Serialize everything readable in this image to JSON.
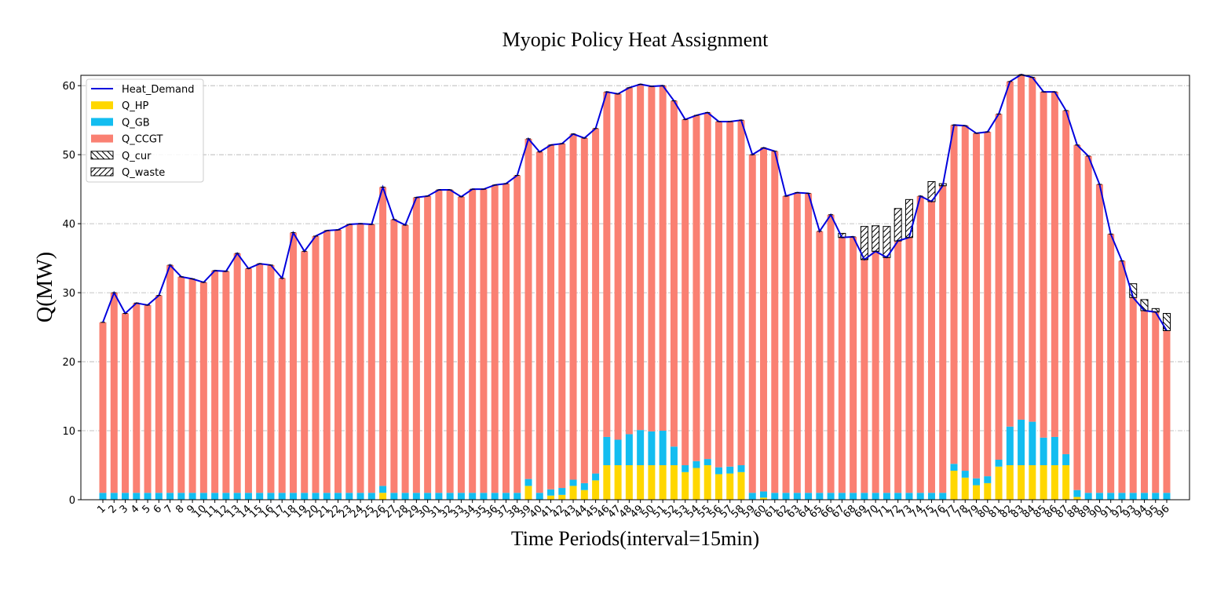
{
  "chart_data": {
    "type": "stacked-bar-line",
    "title": "Myopic Policy Heat Assignment",
    "xlabel": "Time Periods(interval=15min)",
    "ylabel": "Q(MW)",
    "categories": [
      "1",
      "2",
      "3",
      "4",
      "5",
      "6",
      "7",
      "8",
      "9",
      "10",
      "11",
      "12",
      "13",
      "14",
      "15",
      "16",
      "17",
      "18",
      "19",
      "20",
      "21",
      "22",
      "23",
      "24",
      "25",
      "26",
      "27",
      "28",
      "29",
      "30",
      "31",
      "32",
      "33",
      "34",
      "35",
      "36",
      "37",
      "38",
      "39",
      "40",
      "41",
      "42",
      "43",
      "44",
      "45",
      "46",
      "47",
      "48",
      "49",
      "50",
      "51",
      "52",
      "53",
      "54",
      "55",
      "56",
      "57",
      "58",
      "59",
      "60",
      "61",
      "62",
      "63",
      "64",
      "65",
      "66",
      "67",
      "68",
      "69",
      "70",
      "71",
      "72",
      "73",
      "74",
      "75",
      "76",
      "77",
      "78",
      "79",
      "80",
      "81",
      "82",
      "83",
      "84",
      "85",
      "86",
      "87",
      "88",
      "89",
      "90",
      "91",
      "92",
      "93",
      "94",
      "95",
      "96"
    ],
    "line": {
      "name": "Heat_Demand",
      "color": "#0000dd",
      "values": [
        25.7,
        30.0,
        27.0,
        28.5,
        28.2,
        29.6,
        34.0,
        32.3,
        32.0,
        31.5,
        33.2,
        33.1,
        35.7,
        33.5,
        34.2,
        34.0,
        32.1,
        38.7,
        36.0,
        38.2,
        39.0,
        39.1,
        39.9,
        40.0,
        39.9,
        45.3,
        40.6,
        39.8,
        43.8,
        44.0,
        44.9,
        44.9,
        43.9,
        45.0,
        45.0,
        45.6,
        45.8,
        47.0,
        52.3,
        50.4,
        51.4,
        51.6,
        53.0,
        52.4,
        53.8,
        59.1,
        58.8,
        59.7,
        60.2,
        59.9,
        60.0,
        57.8,
        55.1,
        55.7,
        56.1,
        54.8,
        54.8,
        55.0,
        50.0,
        51.0,
        50.5,
        44.0,
        44.5,
        44.4,
        38.9,
        41.3,
        38.0,
        38.1,
        34.8,
        36.0,
        35.1,
        37.5,
        38.0,
        44.0,
        43.2,
        45.5,
        54.3,
        54.2,
        53.1,
        53.3,
        55.9,
        60.6,
        61.6,
        61.2,
        59.1,
        59.1,
        56.4,
        51.4,
        49.8,
        45.7,
        38.5,
        34.6,
        29.3,
        27.4,
        27.2,
        24.5
      ]
    },
    "series": [
      {
        "name": "Q_HP",
        "color": "#ffd700",
        "values": [
          0,
          0,
          0,
          0,
          0,
          0,
          0,
          0,
          0,
          0,
          0,
          0,
          0,
          0,
          0,
          0,
          0,
          0,
          0,
          0,
          0,
          0,
          0,
          0,
          0,
          1.0,
          0,
          0,
          0,
          0,
          0,
          0,
          0,
          0,
          0,
          0,
          0,
          0,
          2.0,
          0,
          0.6,
          0.7,
          2.0,
          1.4,
          2.8,
          5,
          5,
          5,
          5,
          5,
          5,
          5,
          4.0,
          4.6,
          5.0,
          3.7,
          3.8,
          4.0,
          0,
          0.3,
          0,
          0,
          0,
          0,
          0,
          0,
          0,
          0,
          0,
          0,
          0,
          0,
          0,
          0,
          0,
          0,
          4.2,
          3.2,
          2.1,
          2.4,
          4.8,
          5,
          5,
          5,
          5,
          5,
          5,
          0.4,
          0,
          0,
          0,
          0,
          0,
          0,
          0,
          0
        ]
      },
      {
        "name": "Q_GB",
        "color": "#13bdf0",
        "values": [
          1,
          1,
          1,
          1,
          1,
          1,
          1,
          1,
          1,
          1,
          1,
          1,
          1,
          1,
          1,
          1,
          1,
          1,
          1,
          1,
          1,
          1,
          1,
          1,
          1,
          1,
          1,
          1,
          1,
          1,
          1,
          1,
          1,
          1,
          1,
          1,
          1,
          1,
          1,
          1,
          0.9,
          1.0,
          0.9,
          1.0,
          1.0,
          4.1,
          3.7,
          4.5,
          5.1,
          4.9,
          5.0,
          2.7,
          1.0,
          1.0,
          0.9,
          1.0,
          1.0,
          1.0,
          1,
          0.9,
          1,
          1,
          1,
          1,
          1,
          1,
          1,
          1,
          1,
          1,
          1,
          1,
          1,
          1,
          1,
          1,
          1.0,
          1.0,
          1.0,
          1.0,
          1.0,
          5.6,
          6.6,
          6.3,
          4.0,
          4.1,
          1.6,
          1.0,
          1,
          1,
          1,
          1,
          1,
          1,
          1,
          1
        ]
      },
      {
        "name": "Q_CCGT",
        "color": "#fa8072",
        "values": [
          24.7,
          29.0,
          26.0,
          27.5,
          27.2,
          28.6,
          33.0,
          31.3,
          31.0,
          30.5,
          32.2,
          32.1,
          34.7,
          32.5,
          33.2,
          33.0,
          31.1,
          37.7,
          35.0,
          37.2,
          38.0,
          38.1,
          38.9,
          39.0,
          38.9,
          43.3,
          39.6,
          38.8,
          42.8,
          43.0,
          43.9,
          43.9,
          42.9,
          44.0,
          44.0,
          44.6,
          44.8,
          46.0,
          49.3,
          49.4,
          49.9,
          49.9,
          50.1,
          50.0,
          50.0,
          50.0,
          50.1,
          50.2,
          50.1,
          50.0,
          50.0,
          50.1,
          50.1,
          50.1,
          50.2,
          50.1,
          50.0,
          50.0,
          49.0,
          49.8,
          49.5,
          43.0,
          43.5,
          43.4,
          37.9,
          40.3,
          37.0,
          37.1,
          33.8,
          35.0,
          34.1,
          36.5,
          37.0,
          43.0,
          42.2,
          44.5,
          49.1,
          50.0,
          50.0,
          49.9,
          50.1,
          50.0,
          50.0,
          49.9,
          50.1,
          50.0,
          49.8,
          50.0,
          48.8,
          44.7,
          37.5,
          33.6,
          28.3,
          26.4,
          26.2,
          23.5
        ]
      },
      {
        "name": "Q_cur",
        "color": "#ffffff",
        "hatch": "\\\\",
        "values": [
          0,
          0,
          0,
          0,
          0,
          0,
          0,
          0,
          0,
          0,
          0,
          0,
          0,
          0,
          0,
          0,
          0,
          0,
          0,
          0,
          0,
          0,
          0,
          0,
          0,
          0,
          0,
          0,
          0,
          0,
          0,
          0,
          0,
          0,
          0,
          0,
          0,
          0,
          0,
          0,
          0,
          0,
          0,
          0,
          0,
          0,
          0,
          0,
          0,
          0,
          0,
          0,
          0,
          0,
          0,
          0,
          0,
          0,
          0,
          0,
          0,
          0,
          0,
          0,
          0,
          0,
          0,
          0,
          0,
          0,
          0,
          0,
          0,
          0,
          0,
          0,
          0,
          0,
          0,
          0,
          0,
          0,
          0,
          0,
          0,
          0,
          0,
          0,
          0,
          0,
          0,
          0,
          2.0,
          1.6,
          0.5,
          2.5
        ]
      },
      {
        "name": "Q_waste",
        "color": "#ffffff",
        "hatch": "//",
        "values": [
          0,
          0,
          0,
          0,
          0,
          0,
          0,
          0,
          0,
          0,
          0,
          0,
          0,
          0,
          0,
          0,
          0,
          0,
          0,
          0,
          0,
          0,
          0,
          0,
          0,
          0,
          0,
          0,
          0,
          0,
          0,
          0,
          0,
          0,
          0,
          0,
          0,
          0,
          0,
          0,
          0,
          0,
          0,
          0,
          0,
          0,
          0,
          0,
          0,
          0,
          0,
          0,
          0,
          0,
          0,
          0,
          0,
          0,
          0,
          0,
          0,
          0,
          0,
          0,
          0,
          0,
          0.6,
          0,
          4.8,
          3.7,
          4.5,
          4.7,
          5.5,
          0,
          2.9,
          0.3,
          0,
          0,
          0,
          0,
          0,
          0,
          0,
          0,
          0,
          0,
          0,
          0,
          0,
          0,
          0,
          0,
          0,
          0,
          0,
          0
        ]
      }
    ],
    "ylim": [
      0,
      61.5
    ],
    "yticks": [
      0,
      10,
      20,
      30,
      40,
      50,
      60
    ],
    "grid": true,
    "legend": "upper left"
  }
}
